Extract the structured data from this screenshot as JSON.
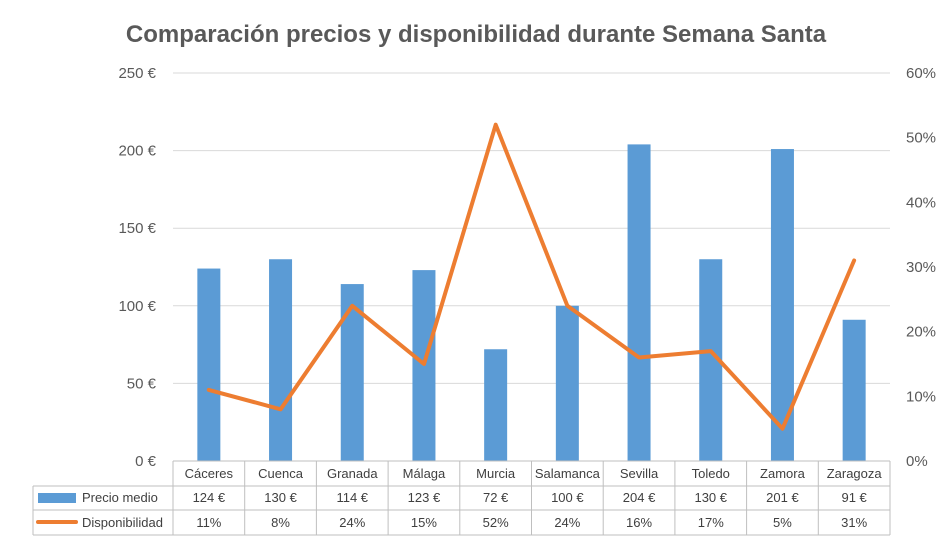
{
  "chart_data": {
    "type": "bar",
    "title": "Comparación precios  y disponibilidad durante Semana Santa",
    "categories": [
      "Cáceres",
      "Cuenca",
      "Granada",
      "Málaga",
      "Murcia",
      "Salamanca",
      "Sevilla",
      "Toledo",
      "Zamora",
      "Zaragoza"
    ],
    "series": [
      {
        "name": "Precio medio",
        "kind": "bar",
        "axis": "left",
        "color": "#5b9bd5",
        "values": [
          124,
          130,
          114,
          123,
          72,
          100,
          204,
          130,
          201,
          91
        ],
        "labels": [
          "124 €",
          "130 €",
          "114 €",
          "123 €",
          "72 €",
          "100 €",
          "204 €",
          "130 €",
          "201 €",
          "91 €"
        ]
      },
      {
        "name": "Disponibilidad",
        "kind": "line",
        "axis": "right",
        "color": "#ed7d31",
        "values": [
          11,
          8,
          24,
          15,
          52,
          24,
          16,
          17,
          5,
          31
        ],
        "labels": [
          "11%",
          "8%",
          "24%",
          "15%",
          "52%",
          "24%",
          "16%",
          "17%",
          "5%",
          "31%"
        ]
      }
    ],
    "left_axis": {
      "min": 0,
      "max": 250,
      "ticks": [
        "0 €",
        "50 €",
        "100 €",
        "150 €",
        "200 €",
        "250 €"
      ]
    },
    "right_axis": {
      "min": 0,
      "max": 60,
      "ticks": [
        "0%",
        "10%",
        "20%",
        "30%",
        "40%",
        "50%",
        "60%"
      ]
    },
    "grid": true,
    "legend": "data-table"
  }
}
